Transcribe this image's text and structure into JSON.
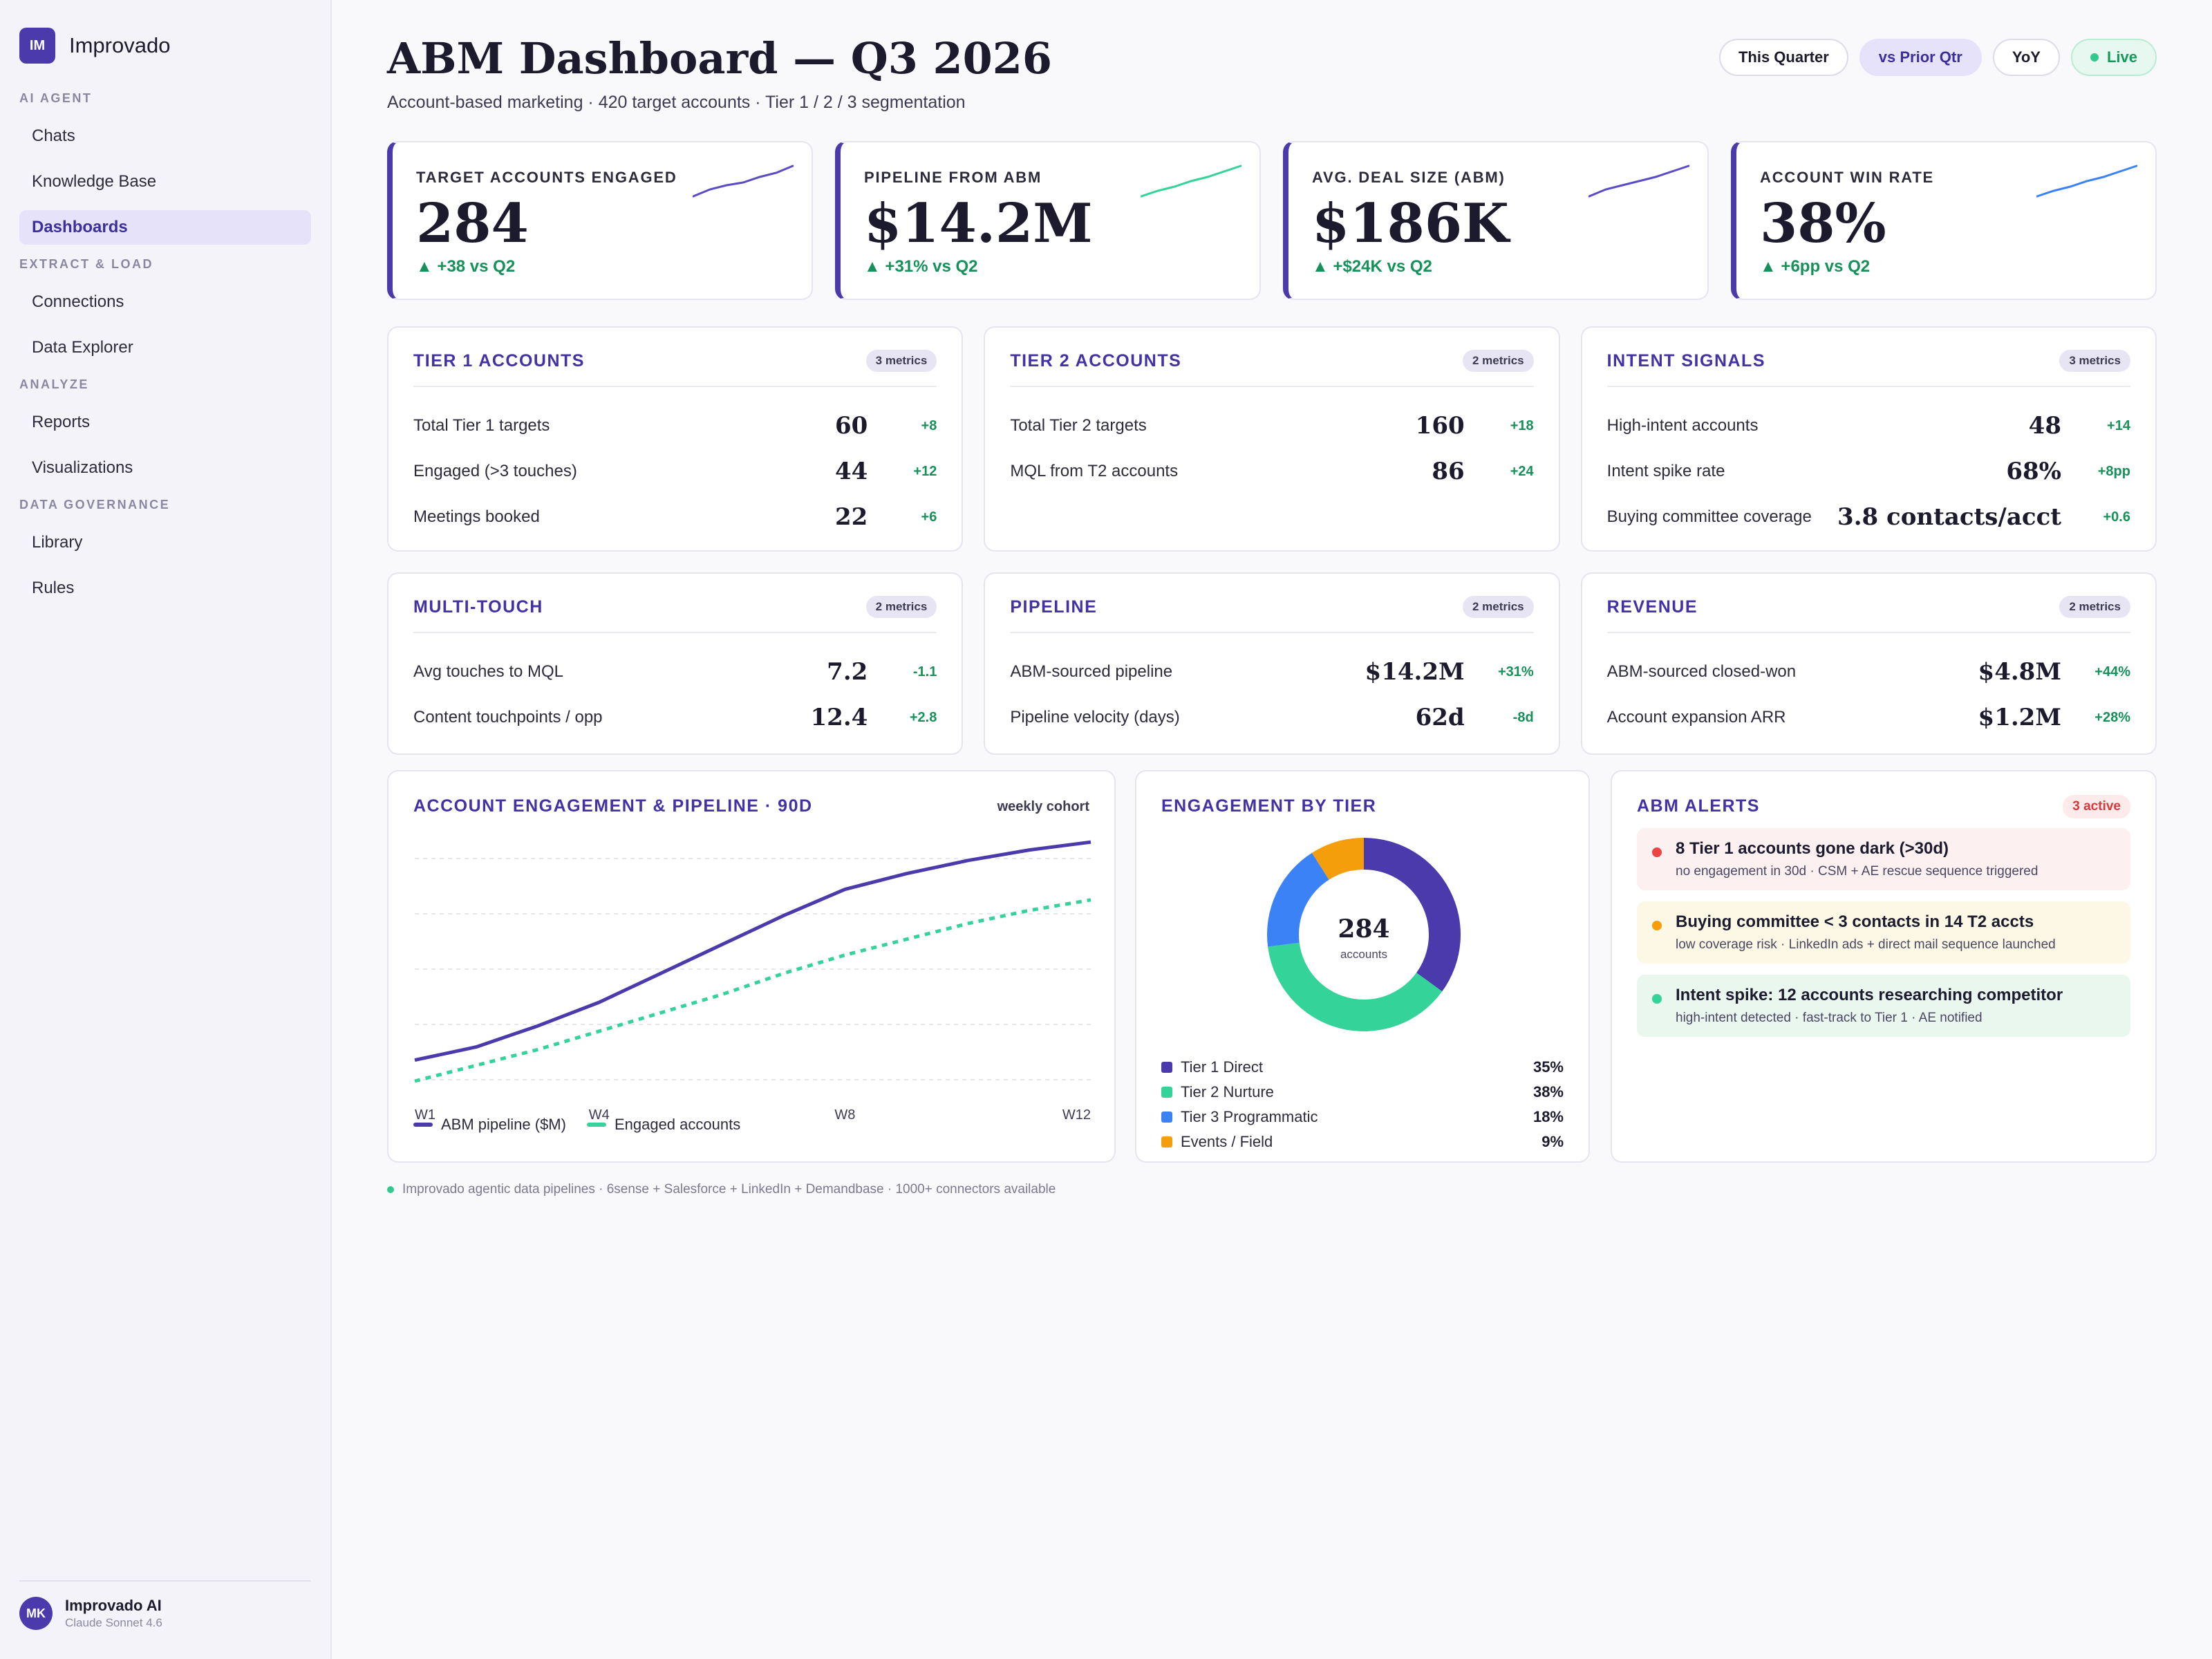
{
  "app": {
    "logo_initials": "IM",
    "name": "Improvado"
  },
  "sidebar": {
    "sections": [
      {
        "title": "AI AGENT",
        "items": [
          {
            "label": "Chats"
          },
          {
            "label": "Knowledge Base"
          },
          {
            "label": "Dashboards",
            "active": true
          }
        ]
      },
      {
        "title": "EXTRACT & LOAD",
        "items": [
          {
            "label": "Connections"
          },
          {
            "label": "Data Explorer"
          }
        ]
      },
      {
        "title": "ANALYZE",
        "items": [
          {
            "label": "Reports"
          },
          {
            "label": "Visualizations"
          }
        ]
      },
      {
        "title": "DATA GOVERNANCE",
        "items": [
          {
            "label": "Library"
          },
          {
            "label": "Rules"
          }
        ]
      }
    ],
    "user": {
      "initials": "MK",
      "name": "Improvado AI",
      "model": "Claude Sonnet 4.6"
    }
  },
  "header": {
    "title": "ABM Dashboard — Q3 2026",
    "subtitle": "Account-based marketing · 420 target accounts · Tier 1 / 2 / 3 segmentation",
    "controls": {
      "this_quarter": "This Quarter",
      "prior_qtr": "vs Prior Qtr",
      "yoy": "YoY",
      "live": "Live"
    }
  },
  "kpis": [
    {
      "label": "TARGET ACCOUNTS ENGAGED",
      "value": "284",
      "delta": "▲ +38 vs Q2",
      "spark_color": "#5b4bc4",
      "spark": [
        3,
        4,
        4.6,
        5,
        5.8,
        6.4,
        7.4
      ]
    },
    {
      "label": "PIPELINE FROM ABM",
      "value": "$14.2M",
      "delta": "▲ +31% vs Q2",
      "spark_color": "#34d399",
      "spark": [
        3,
        3.8,
        4.4,
        5.2,
        5.8,
        6.6,
        7.4
      ]
    },
    {
      "label": "AVG. DEAL SIZE (ABM)",
      "value": "$186K",
      "delta": "▲ +$24K vs Q2",
      "spark_color": "#5b4bc4",
      "spark": [
        3,
        4,
        4.6,
        5.2,
        5.8,
        6.6,
        7.4
      ]
    },
    {
      "label": "ACCOUNT WIN RATE",
      "value": "38%",
      "delta": "▲ +6pp vs Q2",
      "spark_color": "#3b82f6",
      "spark": [
        3,
        3.8,
        4.4,
        5.2,
        5.8,
        6.6,
        7.4
      ]
    }
  ],
  "groups": [
    {
      "title": "TIER 1 ACCOUNTS",
      "badge": "3 metrics",
      "metrics": [
        {
          "label": "Total Tier 1 targets",
          "value": "60",
          "delta": "+8"
        },
        {
          "label": "Engaged (>3 touches)",
          "value": "44",
          "delta": "+12"
        },
        {
          "label": "Meetings booked",
          "value": "22",
          "delta": "+6"
        }
      ]
    },
    {
      "title": "TIER 2 ACCOUNTS",
      "badge": "2 metrics",
      "metrics": [
        {
          "label": "Total Tier 2 targets",
          "value": "160",
          "delta": "+18"
        },
        {
          "label": "MQL from T2 accounts",
          "value": "86",
          "delta": "+24"
        }
      ]
    },
    {
      "title": "INTENT SIGNALS",
      "badge": "3 metrics",
      "metrics": [
        {
          "label": "High-intent accounts",
          "value": "48",
          "delta": "+14"
        },
        {
          "label": "Intent spike rate",
          "value": "68%",
          "delta": "+8pp"
        },
        {
          "label": "Buying committee coverage",
          "value": "3.8 contacts/acct",
          "delta": "+0.6"
        }
      ]
    },
    {
      "title": "MULTI-TOUCH",
      "badge": "2 metrics",
      "metrics": [
        {
          "label": "Avg touches to MQL",
          "value": "7.2",
          "delta": "-1.1"
        },
        {
          "label": "Content touchpoints / opp",
          "value": "12.4",
          "delta": "+2.8"
        }
      ]
    },
    {
      "title": "PIPELINE",
      "badge": "2 metrics",
      "metrics": [
        {
          "label": "ABM-sourced pipeline",
          "value": "$14.2M",
          "delta": "+31%"
        },
        {
          "label": "Pipeline velocity (days)",
          "value": "62d",
          "delta": "-8d"
        }
      ]
    },
    {
      "title": "REVENUE",
      "badge": "2 metrics",
      "metrics": [
        {
          "label": "ABM-sourced closed-won",
          "value": "$4.8M",
          "delta": "+44%"
        },
        {
          "label": "Account expansion ARR",
          "value": "$1.2M",
          "delta": "+28%"
        }
      ]
    }
  ],
  "chart_data": [
    {
      "type": "line",
      "title": "ACCOUNT ENGAGEMENT & PIPELINE · 90D",
      "subtitle": "weekly cohort",
      "x": [
        "W1",
        "W2",
        "W3",
        "W4",
        "W5",
        "W6",
        "W7",
        "W8",
        "W9",
        "W10",
        "W11",
        "W12"
      ],
      "x_tick_labels": [
        "W1",
        "W4",
        "W8",
        "W12"
      ],
      "ylim": [
        0,
        100
      ],
      "grid": true,
      "series": [
        {
          "name": "ABM pipeline ($M)",
          "color": "#4b3aab",
          "style": "solid",
          "values": [
            18,
            23,
            31,
            40,
            51,
            62,
            73,
            83,
            89,
            94,
            98,
            101
          ]
        },
        {
          "name": "Engaged accounts",
          "color": "#34d399",
          "style": "dashed",
          "values": [
            10,
            16,
            22,
            29,
            36,
            43,
            51,
            58,
            64,
            70,
            75,
            79
          ]
        }
      ]
    },
    {
      "type": "pie",
      "title": "ENGAGEMENT BY TIER",
      "center_value": "284",
      "center_label": "accounts",
      "slices": [
        {
          "name": "Tier 1 Direct",
          "value": 35,
          "label": "35%",
          "color": "#4b3aab"
        },
        {
          "name": "Tier 2 Nurture",
          "value": 38,
          "label": "38%",
          "color": "#34d399"
        },
        {
          "name": "Tier 3 Programmatic",
          "value": 18,
          "label": "18%",
          "color": "#3b82f6"
        },
        {
          "name": "Events / Field",
          "value": 9,
          "label": "9%",
          "color": "#f59e0b"
        }
      ]
    }
  ],
  "alerts": {
    "title": "ABM ALERTS",
    "badge": "3 active",
    "items": [
      {
        "title": "8 Tier 1 accounts gone dark (>30d)",
        "sub": "no engagement in 30d · CSM + AE rescue sequence triggered",
        "bg": "#fdf0f0",
        "dot": "#ef4444"
      },
      {
        "title": "Buying committee < 3 contacts in 14 T2 accts",
        "sub": "low coverage risk · LinkedIn ads + direct mail sequence launched",
        "bg": "#fdf8e6",
        "dot": "#f59e0b"
      },
      {
        "title": "Intent spike: 12 accounts researching competitor",
        "sub": "high-intent detected · fast-track to Tier 1 · AE notified",
        "bg": "#e9f7ef",
        "dot": "#34d399"
      }
    ]
  },
  "footer": "Improvado agentic data pipelines · 6sense + Salesforce + LinkedIn + Demandbase · 1000+ connectors available"
}
